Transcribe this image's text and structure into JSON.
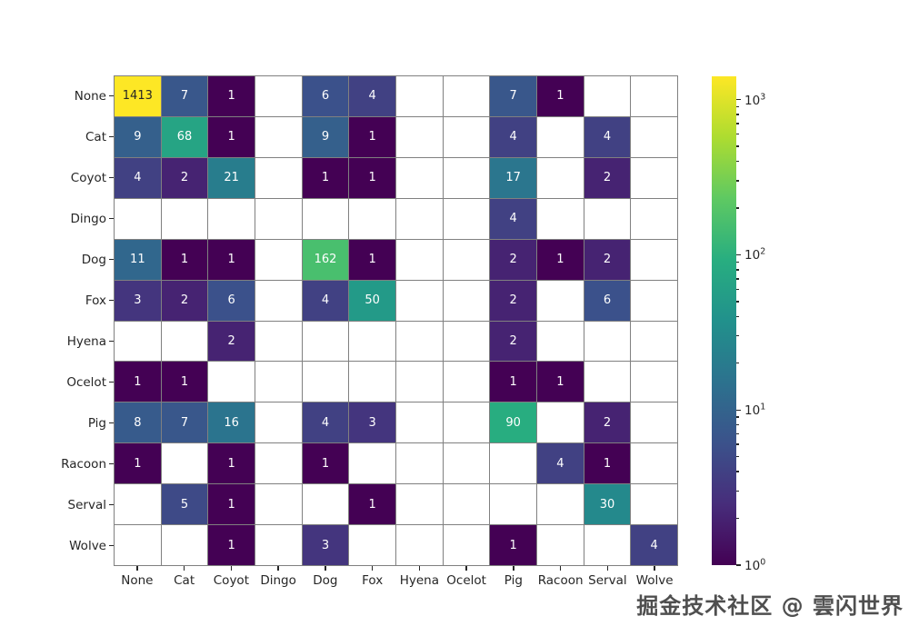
{
  "figure": {
    "background": "#ffffff",
    "watermark": "掘金技术社区 @ 雲闪世界"
  },
  "chart_data": {
    "type": "heatmap",
    "title": "",
    "xlabel": "",
    "ylabel": "",
    "x_categories": [
      "None",
      "Cat",
      "Coyot",
      "Dingo",
      "Dog",
      "Fox",
      "Hyena",
      "Ocelot",
      "Pig",
      "Racoon",
      "Serval",
      "Wolve"
    ],
    "y_categories": [
      "None",
      "Cat",
      "Coyot",
      "Dingo",
      "Dog",
      "Fox",
      "Hyena",
      "Ocelot",
      "Pig",
      "Racoon",
      "Serval",
      "Wolve"
    ],
    "matrix": [
      [
        1413,
        7,
        1,
        null,
        6,
        4,
        null,
        null,
        7,
        1,
        null,
        null
      ],
      [
        9,
        68,
        1,
        null,
        9,
        1,
        null,
        null,
        4,
        null,
        4,
        null
      ],
      [
        4,
        2,
        21,
        null,
        1,
        1,
        null,
        null,
        17,
        null,
        2,
        null
      ],
      [
        null,
        null,
        null,
        null,
        null,
        null,
        null,
        null,
        4,
        null,
        null,
        null
      ],
      [
        11,
        1,
        1,
        null,
        162,
        1,
        null,
        null,
        2,
        1,
        2,
        null
      ],
      [
        3,
        2,
        6,
        null,
        4,
        50,
        null,
        null,
        2,
        null,
        6,
        null
      ],
      [
        null,
        null,
        2,
        null,
        null,
        null,
        null,
        null,
        2,
        null,
        null,
        null
      ],
      [
        1,
        1,
        null,
        null,
        null,
        null,
        null,
        null,
        1,
        1,
        null,
        null
      ],
      [
        8,
        7,
        16,
        null,
        4,
        3,
        null,
        null,
        90,
        null,
        2,
        null
      ],
      [
        1,
        null,
        1,
        null,
        1,
        null,
        null,
        null,
        null,
        4,
        1,
        null
      ],
      [
        null,
        5,
        1,
        null,
        null,
        1,
        null,
        null,
        null,
        null,
        30,
        null
      ],
      [
        null,
        null,
        1,
        null,
        3,
        null,
        null,
        null,
        1,
        null,
        null,
        4
      ]
    ],
    "colormap": "viridis",
    "norm": "log",
    "vmin": 1,
    "vmax": 1413,
    "empty_color": "#ffffff",
    "grid_color": "#808080",
    "grid_on": true,
    "annotation_color_light": "#ffffff",
    "annotation_color_dark": "#262626",
    "legend_position": "colorbar-right",
    "colorbar": {
      "major_ticks": [
        {
          "base": "10",
          "exp": "0",
          "value": 1
        },
        {
          "base": "10",
          "exp": "1",
          "value": 10
        },
        {
          "base": "10",
          "exp": "2",
          "value": 100
        },
        {
          "base": "10",
          "exp": "3",
          "value": 1000
        }
      ],
      "minor_tick_values": [
        2,
        3,
        4,
        5,
        6,
        7,
        8,
        9,
        20,
        30,
        40,
        50,
        60,
        70,
        80,
        90,
        200,
        300,
        400,
        500,
        600,
        700,
        800,
        900
      ]
    }
  }
}
